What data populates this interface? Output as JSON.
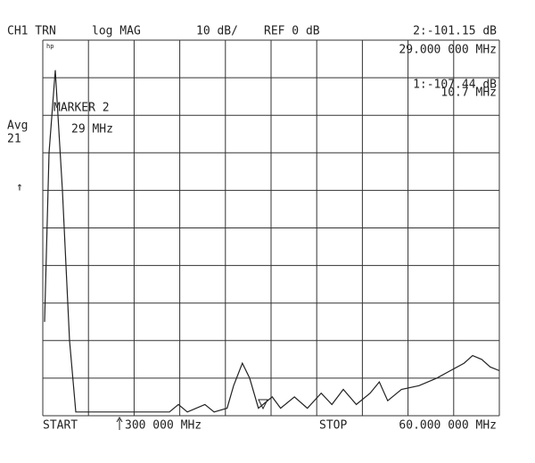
{
  "chart_data": {
    "type": "line",
    "header": {
      "channel": "CH1 TRN",
      "format": "log MAG",
      "scale": "10 dB/",
      "reference": "REF 0 dB"
    },
    "markers": [
      {
        "readout_value": "2:-101.15 dB",
        "readout_freq": "29.000 000 MHz"
      },
      {
        "readout_value": "1:-107.44 dB",
        "readout_freq": "10.7 MHz"
      }
    ],
    "annotation": {
      "title": "MARKER 2",
      "freq": "29 MHz"
    },
    "side": {
      "avg": "Avg",
      "avg_count": "21",
      "arrow": "↑",
      "logo": "hp"
    },
    "footer": {
      "start": "START",
      "start_value": "300 000 MHz",
      "stop": "STOP",
      "stop_value": "60.000 000 MHz"
    },
    "x": [
      0.53,
      1.12,
      1.93,
      2.86,
      3.8,
      4.61,
      9.86,
      16.86,
      18.03,
      19.2,
      21.5,
      22.7,
      24.4,
      25.25,
      26.4,
      27.35,
      28.5,
      29.1,
      30.3,
      31.4,
      33.2,
      34.9,
      36.7,
      38.1,
      39.6,
      41.3,
      43.1,
      44.3,
      45.4,
      47.2,
      49.5,
      51.8,
      53.6,
      55.4,
      56.5,
      57.7,
      58.8,
      60
    ],
    "values": [
      -75,
      -30,
      -8,
      -40,
      -80,
      -99,
      -99,
      -99,
      -97,
      -99,
      -97,
      -99,
      -98,
      -92,
      -86,
      -90,
      -98,
      -97,
      -95,
      -98,
      -95,
      -98,
      -94,
      -97,
      -93,
      -97,
      -94,
      -91,
      -96,
      -93,
      -92,
      -90,
      -88,
      -86,
      -84,
      -85,
      -87,
      -88
    ],
    "color": "#222222",
    "xlim": [
      0.3,
      60
    ],
    "ylim": [
      -100,
      0
    ],
    "xticks": [
      0.3,
      6.27,
      12.24,
      18.21,
      24.18,
      30.15,
      36.12,
      42.09,
      48.06,
      54.03,
      60
    ],
    "yticks": [
      -100,
      -90,
      -80,
      -70,
      -60,
      -50,
      -40,
      -30,
      -20,
      -10,
      0
    ],
    "grid": true
  }
}
